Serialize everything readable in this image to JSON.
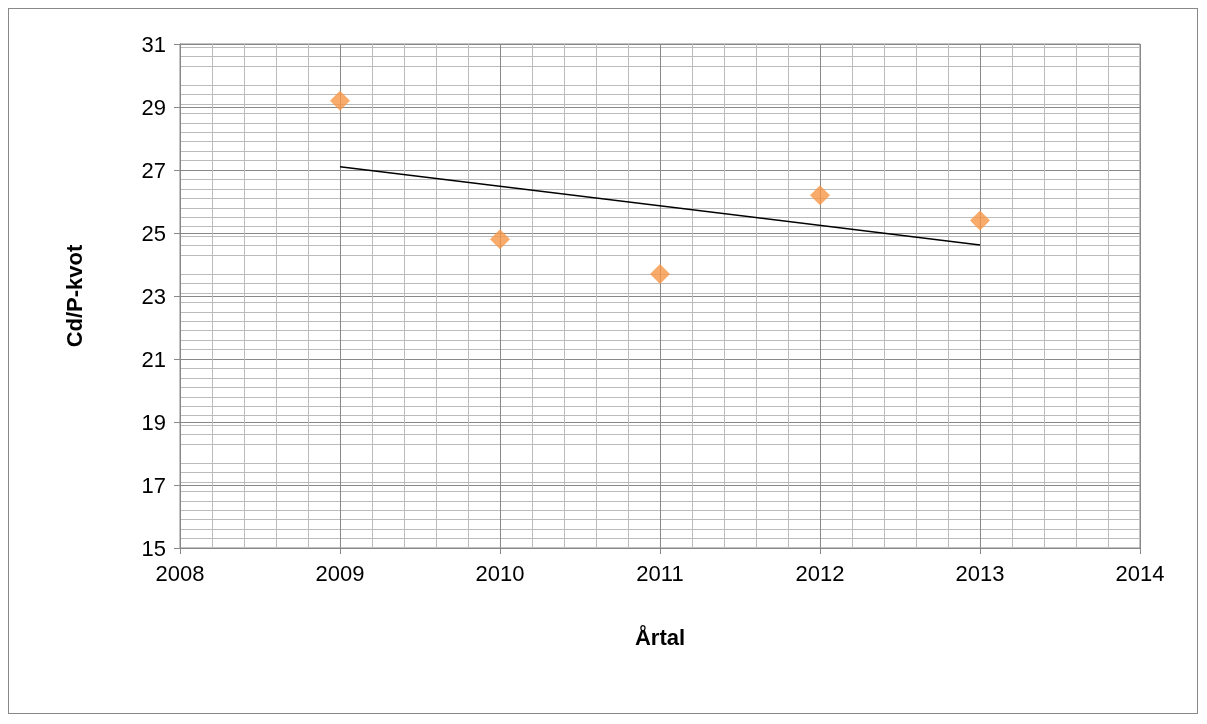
{
  "chart_data": {
    "type": "scatter",
    "xlabel": "Årtal",
    "ylabel": "Cd/P-kvot",
    "series": [
      {
        "color": "#f79646",
        "marker": "diamond",
        "x": [
          2009,
          2010,
          2011,
          2012,
          2013
        ],
        "values": [
          29.2,
          24.8,
          23.7,
          26.2,
          25.4
        ]
      },
      {
        "type": "line",
        "color": "#000000",
        "marker": "none",
        "line_style": "solid",
        "x": [
          2009,
          2013
        ],
        "values": [
          27.1,
          24.62
        ]
      }
    ],
    "xlim": [
      2008,
      2014
    ],
    "xticks": [
      2008,
      2009,
      2010,
      2011,
      2012,
      2013,
      2014
    ],
    "ylim": [
      15,
      31
    ],
    "yticks": [
      15,
      17,
      19,
      21,
      23,
      25,
      27,
      29,
      31
    ],
    "grid": true
  }
}
